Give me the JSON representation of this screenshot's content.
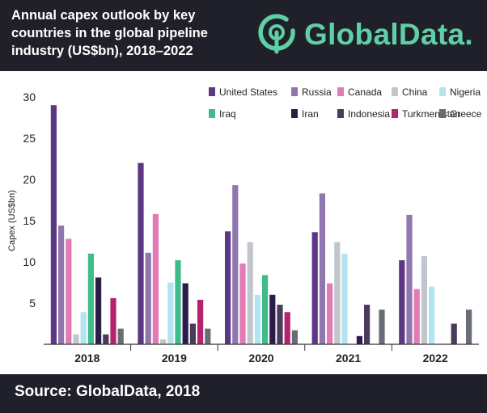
{
  "header": {
    "title_line1": "Annual capex outlook by key",
    "title_line2": "countries in the global pipeline",
    "title_line3": "industry (US$bn), 2018–2022",
    "logo_text": "GlobalData.",
    "logo_icon": "globaldata-logo-icon"
  },
  "footer": {
    "source": "Source: GlobalData, 2018"
  },
  "colors": {
    "header_bg": "#20202a",
    "logo_accent": "#5fd0a3"
  },
  "chart_data": {
    "type": "bar",
    "title": "",
    "xlabel": "",
    "ylabel": "Capex (US$bn)",
    "ylim": [
      0,
      30
    ],
    "yticks": [
      0,
      5,
      10,
      15,
      20,
      25,
      30
    ],
    "ytick_labels": [
      "",
      "5",
      "10",
      "15",
      "20",
      "25",
      "30"
    ],
    "grid": false,
    "legend_position": "top-right",
    "categories": [
      "2018",
      "2019",
      "2020",
      "2021",
      "2022"
    ],
    "series": [
      {
        "name": "United States",
        "color": "#5b3784",
        "values": [
          29.0,
          22.0,
          13.7,
          13.6,
          10.2
        ]
      },
      {
        "name": "Russia",
        "color": "#8f76ae",
        "values": [
          14.4,
          11.1,
          19.3,
          18.3,
          15.7
        ]
      },
      {
        "name": "Canada",
        "color": "#e27bb5",
        "values": [
          12.8,
          15.8,
          9.8,
          7.4,
          6.7
        ]
      },
      {
        "name": "China",
        "color": "#c1c6cc",
        "values": [
          1.2,
          0.6,
          12.4,
          12.4,
          10.7
        ]
      },
      {
        "name": "Nigeria",
        "color": "#b2e5ef",
        "values": [
          3.9,
          7.5,
          6.0,
          11.0,
          7.0
        ]
      },
      {
        "name": "Iraq",
        "color": "#3ebc8a",
        "values": [
          11.0,
          10.2,
          8.4,
          0,
          0
        ]
      },
      {
        "name": "Iran",
        "color": "#2c1c49",
        "values": [
          8.1,
          7.4,
          6.0,
          1.0,
          0
        ]
      },
      {
        "name": "Indonesia",
        "color": "#4a3a5c",
        "values": [
          1.2,
          2.5,
          4.8,
          4.8,
          2.5
        ]
      },
      {
        "name": "Turkmenistan",
        "color": "#b5226d",
        "values": [
          5.6,
          5.4,
          3.9,
          0,
          0
        ]
      },
      {
        "name": "Greece",
        "color": "#686c76",
        "values": [
          1.9,
          1.9,
          1.7,
          4.2,
          4.2
        ]
      }
    ]
  }
}
